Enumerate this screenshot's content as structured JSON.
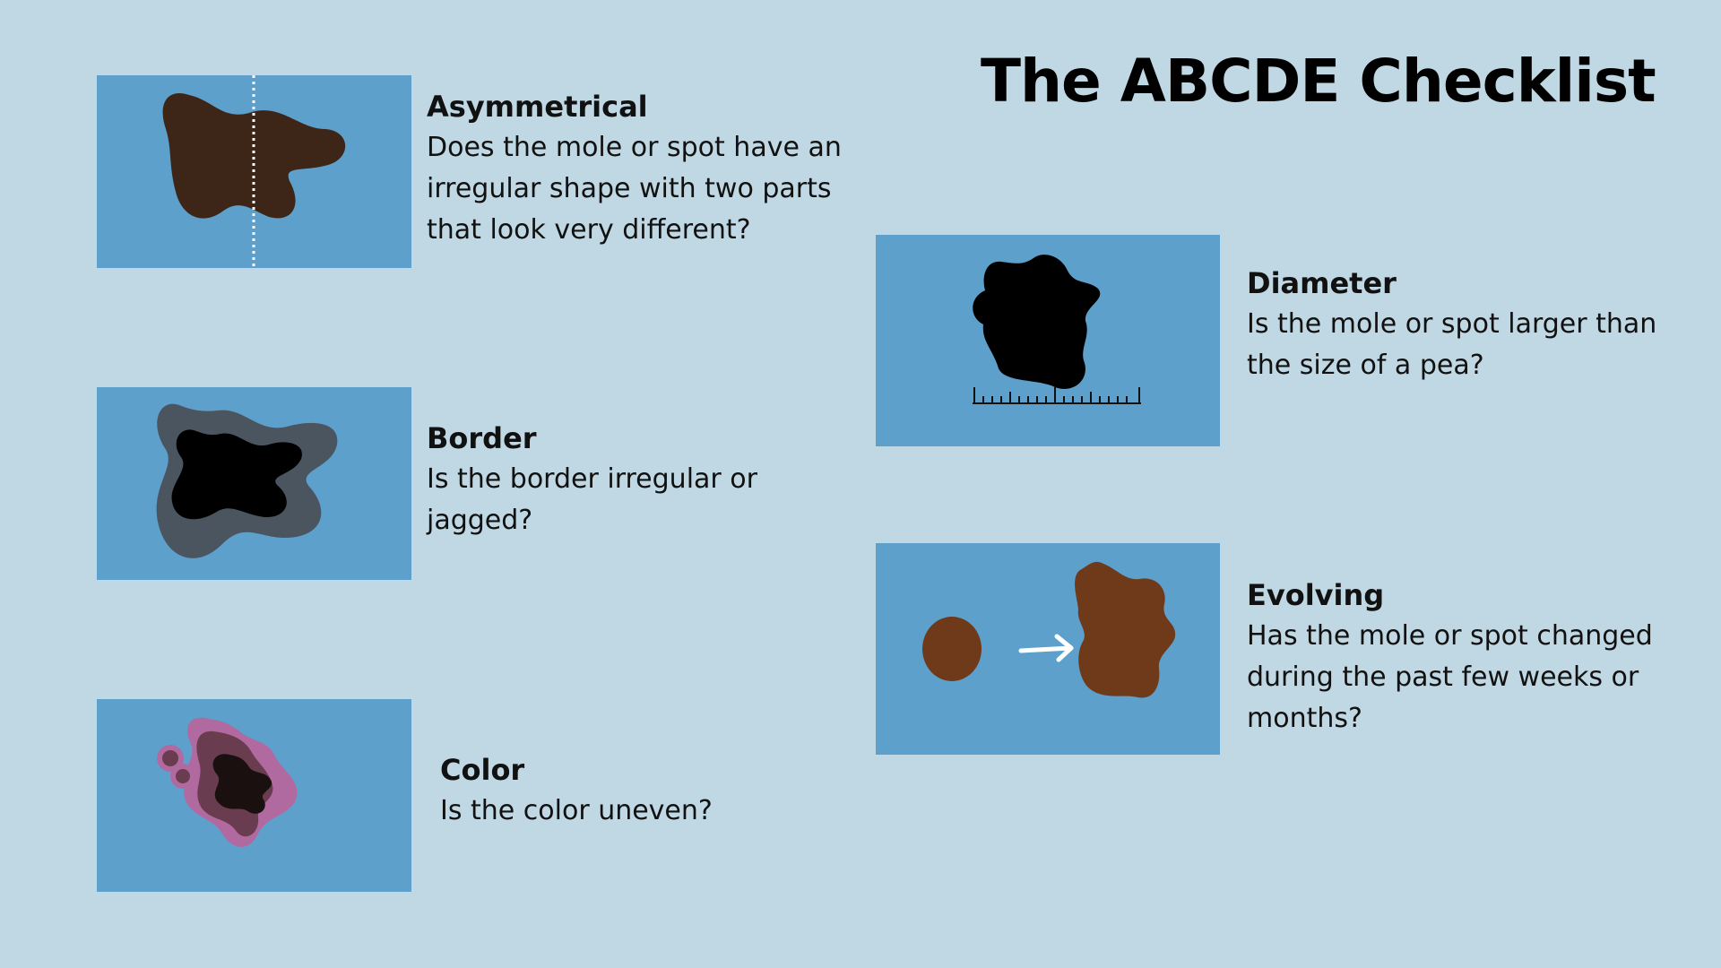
{
  "title": "The ABCDE Checklist",
  "items": {
    "asymmetrical": {
      "heading": "Asymmetrical",
      "description": "Does the mole or spot have an\nirregular shape with two parts\nthat look very different?"
    },
    "border": {
      "heading": "Border",
      "description": "Is the border irregular or\njagged?"
    },
    "color": {
      "heading": "Color",
      "description": "Is the color uneven?"
    },
    "diameter": {
      "heading": "Diameter",
      "description": "Is the mole or spot larger than\nthe size of a pea?"
    },
    "evolving": {
      "heading": "Evolving",
      "description": "Has the mole or spot changed\nduring the past few weeks or\nmonths?"
    }
  },
  "colors": {
    "background": "#bfd8e3",
    "panel": "#5ea0cc",
    "mole_dark_brown": "#3d2618",
    "mole_brown": "#6e3a1a",
    "mole_black": "#000000",
    "border_halo": "#4a5560",
    "color_pink": "#b06aa0",
    "color_mauve": "#6a3c50"
  }
}
